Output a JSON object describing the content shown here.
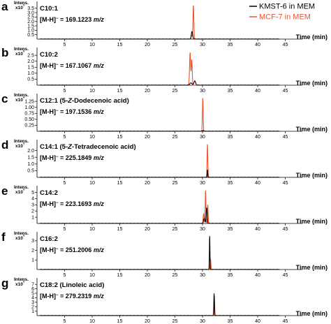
{
  "chart_data": {
    "type": "line",
    "legend": {
      "placement": "top-right",
      "entries": [
        {
          "label": "KMST-6 in MEM",
          "color": "#000000"
        },
        {
          "label": "MCF-7 in MEM",
          "color": "#f0532b"
        }
      ]
    },
    "x_axis": {
      "label": "Time (min)",
      "range": [
        0,
        50
      ],
      "ticks": [
        "5",
        "10",
        "15",
        "20",
        "25",
        "30",
        "35",
        "40",
        "45"
      ]
    },
    "intensity_label": "Intens.",
    "panels": [
      {
        "letter": "a",
        "title": "C10:1",
        "mass": "[M-H]⁻ = 169.1223 m/z",
        "scale": "x10⁵",
        "yticks": [
          "0.5",
          "1.0",
          "1.5",
          "2.0",
          "2.5",
          "3.0",
          "3.5"
        ],
        "ylim": [
          0,
          3.8
        ],
        "series": [
          {
            "name": "KMST-6 in MEM",
            "peaks": [
              {
                "t": 28.1,
                "height": 0.85,
                "width": 0.28
              }
            ]
          },
          {
            "name": "MCF-7 in MEM",
            "peaks": [
              {
                "t": 28.35,
                "height": 3.8,
                "width": 0.18
              },
              {
                "t": 28.05,
                "height": 0.45,
                "width": 0.2
              }
            ]
          }
        ]
      },
      {
        "letter": "b",
        "title": "C10:2",
        "mass": "[M-H]⁻ = 167.1067 m/z",
        "scale": "x10⁵",
        "yticks": [
          "0.5",
          "1.0",
          "1.5",
          "2.0",
          "2.5"
        ],
        "ylim": [
          0,
          2.8
        ],
        "series": [
          {
            "name": "KMST-6 in MEM",
            "peaks": [
              {
                "t": 27.9,
                "height": 0.18,
                "width": 0.5
              },
              {
                "t": 28.6,
                "height": 0.35,
                "width": 0.35
              }
            ]
          },
          {
            "name": "MCF-7 in MEM",
            "peaks": [
              {
                "t": 27.75,
                "height": 2.7,
                "width": 0.22
              },
              {
                "t": 28.05,
                "height": 2.1,
                "width": 0.2
              }
            ]
          }
        ]
      },
      {
        "letter": "c",
        "title": "C12:1 (5-Z-Dodecenoic acid)",
        "mass": "[M-H]⁻ = 197.1536 m/z",
        "scale": "x10⁶",
        "yticks": [
          "0.25",
          "0.50",
          "0.75",
          "1.00",
          "1.25"
        ],
        "ylim": [
          0,
          1.4
        ],
        "series": [
          {
            "name": "KMST-6 in MEM",
            "peaks": [
              {
                "t": 30.1,
                "height": 0.03,
                "width": 0.3
              }
            ]
          },
          {
            "name": "MCF-7 in MEM",
            "peaks": [
              {
                "t": 30.05,
                "height": 1.38,
                "width": 0.16
              }
            ]
          }
        ]
      },
      {
        "letter": "d",
        "title": "C14:1 (5-Z-Tetradecenoic acid)",
        "mass": "[M-H]⁻ = 225.1849 m/z",
        "scale": "x10⁵",
        "yticks": [
          "0.5",
          "1.0",
          "1.5",
          "2.0"
        ],
        "ylim": [
          0,
          2.5
        ],
        "series": [
          {
            "name": "KMST-6 in MEM",
            "peaks": [
              {
                "t": 30.9,
                "height": 0.55,
                "width": 0.12
              }
            ]
          },
          {
            "name": "MCF-7 in MEM",
            "peaks": [
              {
                "t": 30.9,
                "height": 2.45,
                "width": 0.16
              }
            ]
          }
        ]
      },
      {
        "letter": "e",
        "title": "C14:2",
        "mass": "[M-H]⁻ = 223.1693 m/z",
        "scale": "x10⁵",
        "yticks": [
          "1",
          "2",
          "3",
          "4",
          "5"
        ],
        "ylim": [
          0,
          5.4
        ],
        "series": [
          {
            "name": "KMST-6 in MEM",
            "peaks": [
              {
                "t": 30.75,
                "height": 2.5,
                "width": 0.22
              },
              {
                "t": 30.3,
                "height": 0.8,
                "width": 0.25
              }
            ]
          },
          {
            "name": "MCF-7 in MEM",
            "peaks": [
              {
                "t": 30.55,
                "height": 5.3,
                "width": 0.15
              },
              {
                "t": 30.95,
                "height": 3.0,
                "width": 0.15
              },
              {
                "t": 30.2,
                "height": 1.6,
                "width": 0.2
              }
            ]
          }
        ]
      },
      {
        "letter": "f",
        "title": "C16:2",
        "mass": "[M-H]⁻ = 251.2006 m/z",
        "scale": "x10⁵",
        "yticks": [
          "1",
          "2",
          "3"
        ],
        "ylim": [
          0,
          3.5
        ],
        "series": [
          {
            "name": "KMST-6 in MEM",
            "peaks": [
              {
                "t": 31.3,
                "height": 3.45,
                "width": 0.12
              }
            ]
          },
          {
            "name": "MCF-7 in MEM",
            "peaks": [
              {
                "t": 31.45,
                "height": 1.1,
                "width": 0.15
              }
            ]
          }
        ]
      },
      {
        "letter": "g",
        "title": "C18:2 (Linoleic acid)",
        "mass": "[M-H]⁻ = 279.2319 m/z",
        "scale": "x10⁵",
        "yticks": [
          "1",
          "2",
          "3",
          "4",
          "5",
          "6",
          "7"
        ],
        "ylim": [
          0,
          7.5
        ],
        "series": [
          {
            "name": "KMST-6 in MEM",
            "peaks": [
              {
                "t": 32.1,
                "height": 4.9,
                "width": 0.12
              }
            ]
          },
          {
            "name": "MCF-7 in MEM",
            "peaks": [
              {
                "t": 32.15,
                "height": 4.3,
                "width": 0.13
              }
            ]
          }
        ]
      }
    ]
  }
}
